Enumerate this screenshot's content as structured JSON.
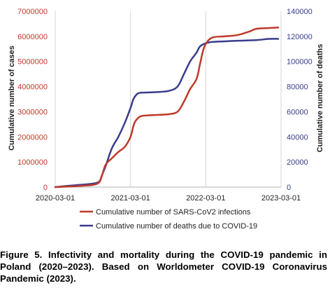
{
  "chart_data": {
    "type": "line",
    "x_ticks": [
      "2020-03-01",
      "2021-03-01",
      "2022-03-01",
      "2023-03-01"
    ],
    "y_left": {
      "label": "Cumulative number of cases",
      "range": [
        0,
        7000000
      ],
      "ticks": [
        "0",
        "1000000",
        "2000000",
        "3000000",
        "4000000",
        "5000000",
        "6000000",
        "7000000"
      ]
    },
    "y_right": {
      "label": "Cumulative number of deaths",
      "range": [
        0,
        140000
      ],
      "ticks": [
        "0",
        "20000",
        "40000",
        "60000",
        "80000",
        "100000",
        "120000",
        "140000"
      ]
    },
    "grid": "vertical lines at x ticks",
    "legend_position": "bottom",
    "series": [
      {
        "name": "Cumulative number of SARS-CoV2 infections",
        "axis": "left",
        "color": "#c0392b",
        "x": [
          "2020-03-01",
          "2020-05-01",
          "2020-07-01",
          "2020-09-01",
          "2020-10-01",
          "2020-10-15",
          "2020-11-01",
          "2020-12-01",
          "2021-01-01",
          "2021-02-01",
          "2021-03-01",
          "2021-03-20",
          "2021-04-15",
          "2021-05-15",
          "2021-07-01",
          "2021-09-01",
          "2021-10-15",
          "2021-11-15",
          "2021-12-15",
          "2022-01-15",
          "2022-02-01",
          "2022-02-15",
          "2022-03-01",
          "2022-04-01",
          "2022-06-01",
          "2022-08-01",
          "2022-10-01",
          "2022-11-01",
          "2023-01-01",
          "2023-02-15"
        ],
        "values": [
          0,
          20000,
          50000,
          90000,
          200000,
          500000,
          900000,
          1150000,
          1400000,
          1600000,
          2000000,
          2550000,
          2800000,
          2850000,
          2870000,
          2900000,
          3000000,
          3400000,
          3900000,
          4300000,
          4900000,
          5400000,
          5700000,
          5950000,
          6000000,
          6050000,
          6200000,
          6300000,
          6330000,
          6350000
        ]
      },
      {
        "name": "Cumulative number of deaths due to COVID-19",
        "axis": "right",
        "color": "#3a3c8c",
        "x": [
          "2020-03-01",
          "2020-05-01",
          "2020-07-01",
          "2020-09-01",
          "2020-10-01",
          "2020-10-15",
          "2020-11-01",
          "2020-12-01",
          "2021-01-01",
          "2021-02-01",
          "2021-03-01",
          "2021-03-15",
          "2021-04-01",
          "2021-04-15",
          "2021-05-01",
          "2021-07-01",
          "2021-09-01",
          "2021-10-15",
          "2021-11-15",
          "2021-12-15",
          "2022-01-15",
          "2022-02-01",
          "2022-03-01",
          "2022-04-01",
          "2022-06-01",
          "2022-08-01",
          "2022-11-01",
          "2023-01-01",
          "2023-02-15"
        ],
        "values": [
          0,
          1000,
          1800,
          2800,
          4500,
          10000,
          17000,
          31000,
          40000,
          51000,
          63000,
          70000,
          74000,
          75000,
          75200,
          75600,
          76500,
          80000,
          90000,
          100000,
          107000,
          112000,
          114500,
          115500,
          116000,
          116500,
          117000,
          118000,
          118000
        ]
      }
    ]
  },
  "caption": "Figure 5. Infectivity and mortality during the COVID-19 pandemic in Poland (2020–2023). Based on Worldometer COVID-19 Coronavirus Pandemic (2023)."
}
